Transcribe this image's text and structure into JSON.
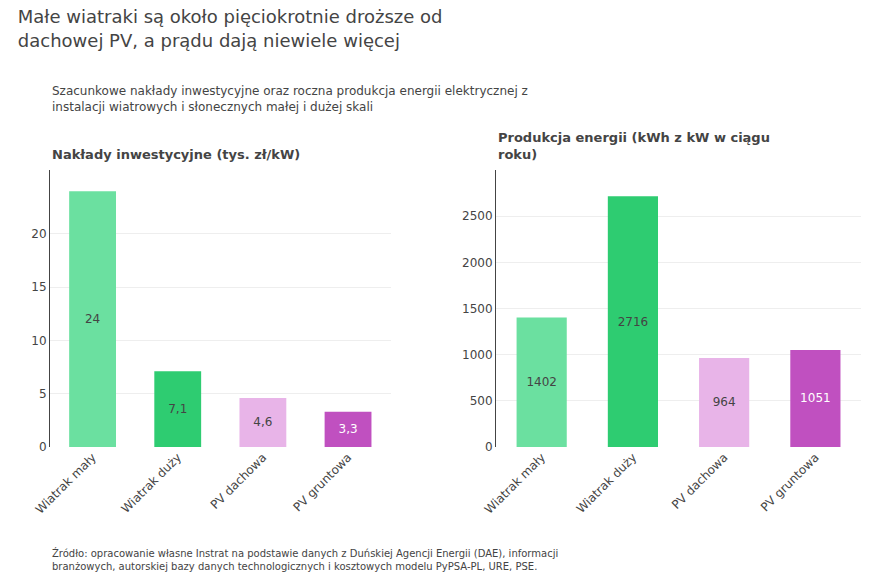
{
  "title": "Małe wiatraki są około pięciokrotnie droższe od\ndachowej PV, a prądu dają niewiele więcej",
  "subtitle": "Szacunkowe nakłady inwestycyjne oraz roczna produkcja energii elektrycznej z\ninstalacji wiatrowych i słonecznych małej i dużej skali",
  "source": "Źródło: opracowanie własne Instrat na podstawie danych z Duńskiej Agencji Energii (DAE), informacji\nbranżowych, autorskiej bazy danych technologicznych i kosztowych modelu PyPSA-PL, URE, PSE.",
  "chart_data": [
    {
      "type": "bar",
      "title": "Nakłady inwestycyjne (tys. zł/kW)",
      "categories": [
        "Wiatrak mały",
        "Wiatrak duży",
        "PV dachowa",
        "PV gruntowa"
      ],
      "values": [
        24,
        7.1,
        4.6,
        3.3
      ],
      "value_labels": [
        "24",
        "7,1",
        "4,6",
        "3,3"
      ],
      "colors": [
        "#6be0a0",
        "#2ecc71",
        "#e8b4e8",
        "#c050c0"
      ],
      "ylim": [
        0,
        26
      ],
      "yticks": [
        0,
        5,
        10,
        15,
        20
      ],
      "grid": true,
      "data_labels": true
    },
    {
      "type": "bar",
      "title": "Produkcja energii (kWh z kW w ciągu\nroku)",
      "categories": [
        "Wiatrak mały",
        "Wiatrak duży",
        "PV dachowa",
        "PV gruntowa"
      ],
      "values": [
        1402,
        2716,
        964,
        1051
      ],
      "value_labels": [
        "1402",
        "2716",
        "964",
        "1051"
      ],
      "colors": [
        "#6be0a0",
        "#2ecc71",
        "#e8b4e8",
        "#c050c0"
      ],
      "ylim": [
        0,
        3000
      ],
      "yticks": [
        0,
        500,
        1000,
        1500,
        2000,
        2500
      ],
      "grid": true,
      "data_labels": true
    }
  ]
}
